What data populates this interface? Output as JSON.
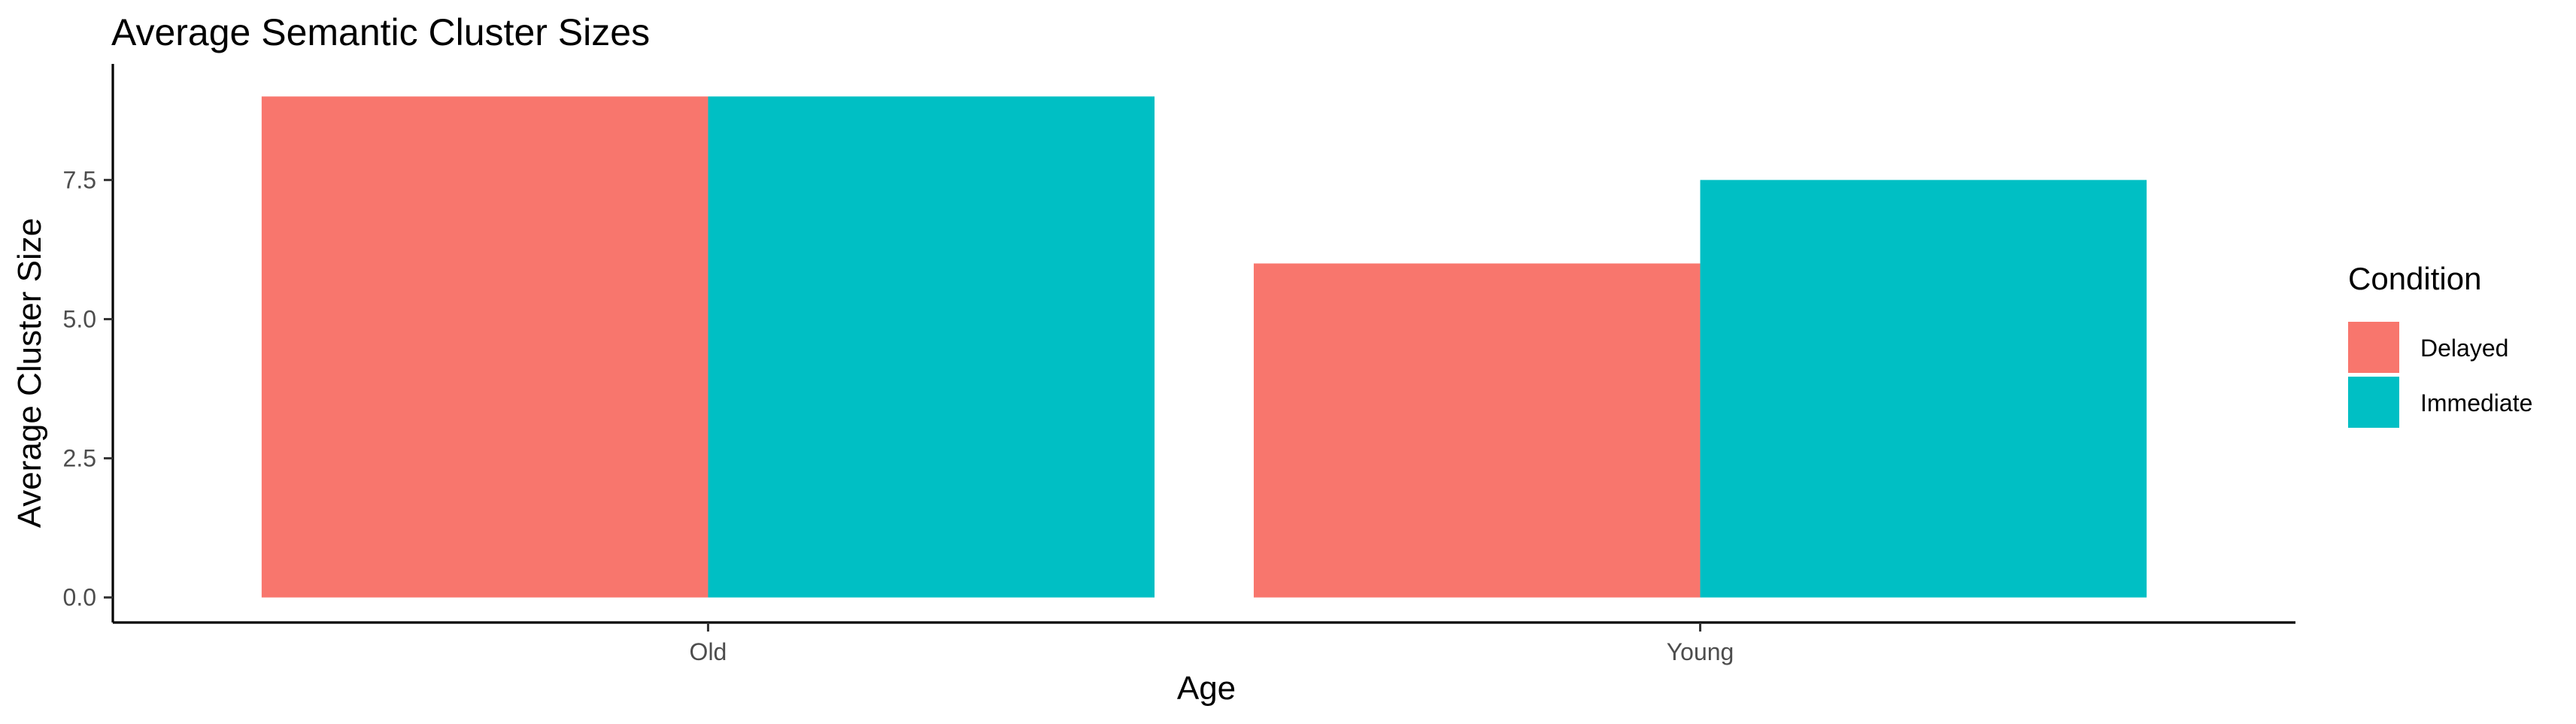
{
  "chart_data": {
    "type": "bar",
    "title": "Average Semantic Cluster Sizes",
    "xlabel": "Age",
    "ylabel": "Average Cluster Size",
    "categories": [
      "Old",
      "Young"
    ],
    "series": [
      {
        "name": "Delayed",
        "values": [
          9,
          6
        ],
        "color": "#F8766D"
      },
      {
        "name": "Immediate",
        "values": [
          9,
          7.5
        ],
        "color": "#00BFC4"
      }
    ],
    "ylim": [
      -0.45,
      9.45
    ],
    "yticks": [
      0,
      2.5,
      5,
      7.5
    ],
    "ytick_labels": [
      "0.0",
      "2.5",
      "5.0",
      "7.5"
    ],
    "grid": false,
    "legend": {
      "title": "Condition",
      "position": "right"
    }
  }
}
